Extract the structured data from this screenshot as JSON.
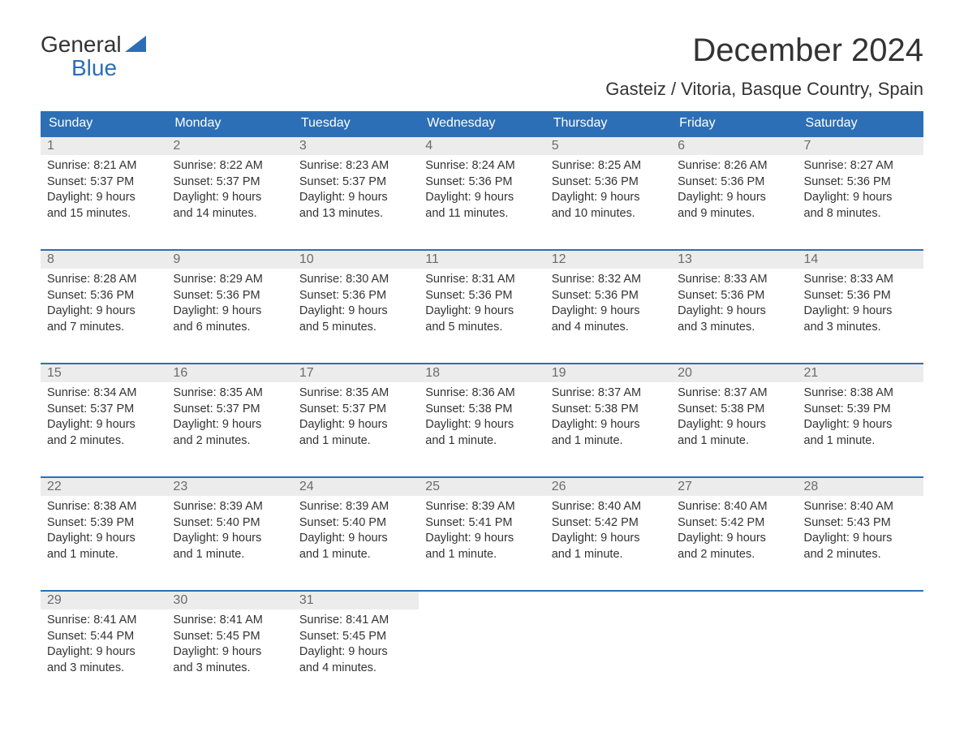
{
  "colors": {
    "header_bg": "#2c6fb6",
    "header_text": "#ffffff",
    "daynum_bg": "#ececec",
    "daynum_text": "#6b6b6b",
    "body_text": "#333333",
    "week_border": "#2c6fb6",
    "logo_blue": "#2c6fb6"
  },
  "logo": {
    "line1": "General",
    "line2": "Blue"
  },
  "title": "December 2024",
  "location": "Gasteiz / Vitoria, Basque Country, Spain",
  "day_names": [
    "Sunday",
    "Monday",
    "Tuesday",
    "Wednesday",
    "Thursday",
    "Friday",
    "Saturday"
  ],
  "weeks": [
    [
      {
        "num": "1",
        "sunrise": "Sunrise: 8:21 AM",
        "sunset": "Sunset: 5:37 PM",
        "daylight1": "Daylight: 9 hours",
        "daylight2": "and 15 minutes."
      },
      {
        "num": "2",
        "sunrise": "Sunrise: 8:22 AM",
        "sunset": "Sunset: 5:37 PM",
        "daylight1": "Daylight: 9 hours",
        "daylight2": "and 14 minutes."
      },
      {
        "num": "3",
        "sunrise": "Sunrise: 8:23 AM",
        "sunset": "Sunset: 5:37 PM",
        "daylight1": "Daylight: 9 hours",
        "daylight2": "and 13 minutes."
      },
      {
        "num": "4",
        "sunrise": "Sunrise: 8:24 AM",
        "sunset": "Sunset: 5:36 PM",
        "daylight1": "Daylight: 9 hours",
        "daylight2": "and 11 minutes."
      },
      {
        "num": "5",
        "sunrise": "Sunrise: 8:25 AM",
        "sunset": "Sunset: 5:36 PM",
        "daylight1": "Daylight: 9 hours",
        "daylight2": "and 10 minutes."
      },
      {
        "num": "6",
        "sunrise": "Sunrise: 8:26 AM",
        "sunset": "Sunset: 5:36 PM",
        "daylight1": "Daylight: 9 hours",
        "daylight2": "and 9 minutes."
      },
      {
        "num": "7",
        "sunrise": "Sunrise: 8:27 AM",
        "sunset": "Sunset: 5:36 PM",
        "daylight1": "Daylight: 9 hours",
        "daylight2": "and 8 minutes."
      }
    ],
    [
      {
        "num": "8",
        "sunrise": "Sunrise: 8:28 AM",
        "sunset": "Sunset: 5:36 PM",
        "daylight1": "Daylight: 9 hours",
        "daylight2": "and 7 minutes."
      },
      {
        "num": "9",
        "sunrise": "Sunrise: 8:29 AM",
        "sunset": "Sunset: 5:36 PM",
        "daylight1": "Daylight: 9 hours",
        "daylight2": "and 6 minutes."
      },
      {
        "num": "10",
        "sunrise": "Sunrise: 8:30 AM",
        "sunset": "Sunset: 5:36 PM",
        "daylight1": "Daylight: 9 hours",
        "daylight2": "and 5 minutes."
      },
      {
        "num": "11",
        "sunrise": "Sunrise: 8:31 AM",
        "sunset": "Sunset: 5:36 PM",
        "daylight1": "Daylight: 9 hours",
        "daylight2": "and 5 minutes."
      },
      {
        "num": "12",
        "sunrise": "Sunrise: 8:32 AM",
        "sunset": "Sunset: 5:36 PM",
        "daylight1": "Daylight: 9 hours",
        "daylight2": "and 4 minutes."
      },
      {
        "num": "13",
        "sunrise": "Sunrise: 8:33 AM",
        "sunset": "Sunset: 5:36 PM",
        "daylight1": "Daylight: 9 hours",
        "daylight2": "and 3 minutes."
      },
      {
        "num": "14",
        "sunrise": "Sunrise: 8:33 AM",
        "sunset": "Sunset: 5:36 PM",
        "daylight1": "Daylight: 9 hours",
        "daylight2": "and 3 minutes."
      }
    ],
    [
      {
        "num": "15",
        "sunrise": "Sunrise: 8:34 AM",
        "sunset": "Sunset: 5:37 PM",
        "daylight1": "Daylight: 9 hours",
        "daylight2": "and 2 minutes."
      },
      {
        "num": "16",
        "sunrise": "Sunrise: 8:35 AM",
        "sunset": "Sunset: 5:37 PM",
        "daylight1": "Daylight: 9 hours",
        "daylight2": "and 2 minutes."
      },
      {
        "num": "17",
        "sunrise": "Sunrise: 8:35 AM",
        "sunset": "Sunset: 5:37 PM",
        "daylight1": "Daylight: 9 hours",
        "daylight2": "and 1 minute."
      },
      {
        "num": "18",
        "sunrise": "Sunrise: 8:36 AM",
        "sunset": "Sunset: 5:38 PM",
        "daylight1": "Daylight: 9 hours",
        "daylight2": "and 1 minute."
      },
      {
        "num": "19",
        "sunrise": "Sunrise: 8:37 AM",
        "sunset": "Sunset: 5:38 PM",
        "daylight1": "Daylight: 9 hours",
        "daylight2": "and 1 minute."
      },
      {
        "num": "20",
        "sunrise": "Sunrise: 8:37 AM",
        "sunset": "Sunset: 5:38 PM",
        "daylight1": "Daylight: 9 hours",
        "daylight2": "and 1 minute."
      },
      {
        "num": "21",
        "sunrise": "Sunrise: 8:38 AM",
        "sunset": "Sunset: 5:39 PM",
        "daylight1": "Daylight: 9 hours",
        "daylight2": "and 1 minute."
      }
    ],
    [
      {
        "num": "22",
        "sunrise": "Sunrise: 8:38 AM",
        "sunset": "Sunset: 5:39 PM",
        "daylight1": "Daylight: 9 hours",
        "daylight2": "and 1 minute."
      },
      {
        "num": "23",
        "sunrise": "Sunrise: 8:39 AM",
        "sunset": "Sunset: 5:40 PM",
        "daylight1": "Daylight: 9 hours",
        "daylight2": "and 1 minute."
      },
      {
        "num": "24",
        "sunrise": "Sunrise: 8:39 AM",
        "sunset": "Sunset: 5:40 PM",
        "daylight1": "Daylight: 9 hours",
        "daylight2": "and 1 minute."
      },
      {
        "num": "25",
        "sunrise": "Sunrise: 8:39 AM",
        "sunset": "Sunset: 5:41 PM",
        "daylight1": "Daylight: 9 hours",
        "daylight2": "and 1 minute."
      },
      {
        "num": "26",
        "sunrise": "Sunrise: 8:40 AM",
        "sunset": "Sunset: 5:42 PM",
        "daylight1": "Daylight: 9 hours",
        "daylight2": "and 1 minute."
      },
      {
        "num": "27",
        "sunrise": "Sunrise: 8:40 AM",
        "sunset": "Sunset: 5:42 PM",
        "daylight1": "Daylight: 9 hours",
        "daylight2": "and 2 minutes."
      },
      {
        "num": "28",
        "sunrise": "Sunrise: 8:40 AM",
        "sunset": "Sunset: 5:43 PM",
        "daylight1": "Daylight: 9 hours",
        "daylight2": "and 2 minutes."
      }
    ],
    [
      {
        "num": "29",
        "sunrise": "Sunrise: 8:41 AM",
        "sunset": "Sunset: 5:44 PM",
        "daylight1": "Daylight: 9 hours",
        "daylight2": "and 3 minutes."
      },
      {
        "num": "30",
        "sunrise": "Sunrise: 8:41 AM",
        "sunset": "Sunset: 5:45 PM",
        "daylight1": "Daylight: 9 hours",
        "daylight2": "and 3 minutes."
      },
      {
        "num": "31",
        "sunrise": "Sunrise: 8:41 AM",
        "sunset": "Sunset: 5:45 PM",
        "daylight1": "Daylight: 9 hours",
        "daylight2": "and 4 minutes."
      },
      null,
      null,
      null,
      null
    ]
  ]
}
